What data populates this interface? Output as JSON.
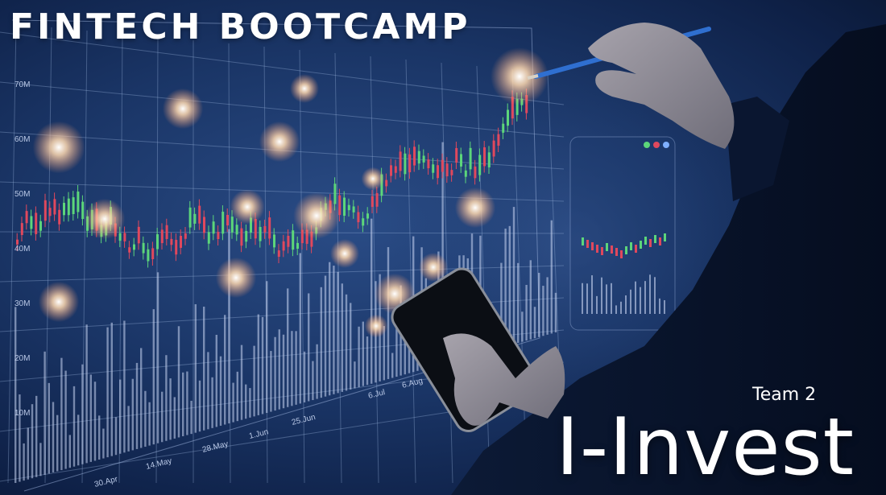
{
  "slide": {
    "title": "FINTECH BOOTCAMP",
    "team": "Team 2",
    "brand": "I-Invest"
  },
  "background": {
    "y_axis_ticks": [
      "70M",
      "60M",
      "50M",
      "40M",
      "30M",
      "20M",
      "10M"
    ],
    "x_axis_ticks": [
      "30.Apr",
      "14.May",
      "28.May",
      "1.Jun",
      "25.Jun",
      "6.Jul",
      "6.Aug"
    ],
    "colors": {
      "base": "#1a3566",
      "grid": "#9fb6e0",
      "candle_up": "#5cd67a",
      "candle_down": "#e0485d",
      "glow": "#ffd9b0",
      "text": "#ffffff"
    }
  }
}
